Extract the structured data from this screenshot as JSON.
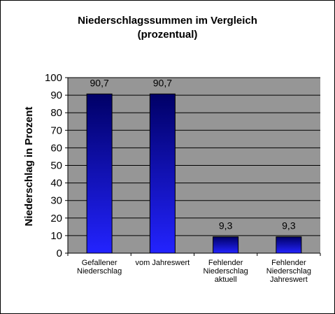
{
  "chart_data": {
    "type": "bar",
    "title": "Niederschlagssummen  im Vergleich",
    "subtitle": "(prozentual)",
    "ylabel": "Niederschlag in Prozent",
    "xlabel": "",
    "ylim": [
      0,
      100
    ],
    "yticks": [
      0,
      10,
      20,
      30,
      40,
      50,
      60,
      70,
      80,
      90,
      100
    ],
    "grid": true,
    "categories": [
      [
        "Gefallener",
        "Niederschlag"
      ],
      [
        "vom Jahreswert"
      ],
      [
        "Fehlender",
        "Niederschlag",
        "aktuell"
      ],
      [
        "Fehlender",
        "Niederschlag",
        "Jahreswert"
      ]
    ],
    "values": [
      90.7,
      90.7,
      9.3,
      9.3
    ],
    "value_labels": [
      "90,7",
      "90,7",
      "9,3",
      "9,3"
    ],
    "colors": {
      "plot_background": "#969696",
      "bar_top": "#000066",
      "bar_bottom": "#2323ff",
      "gridline": "#000000"
    }
  }
}
